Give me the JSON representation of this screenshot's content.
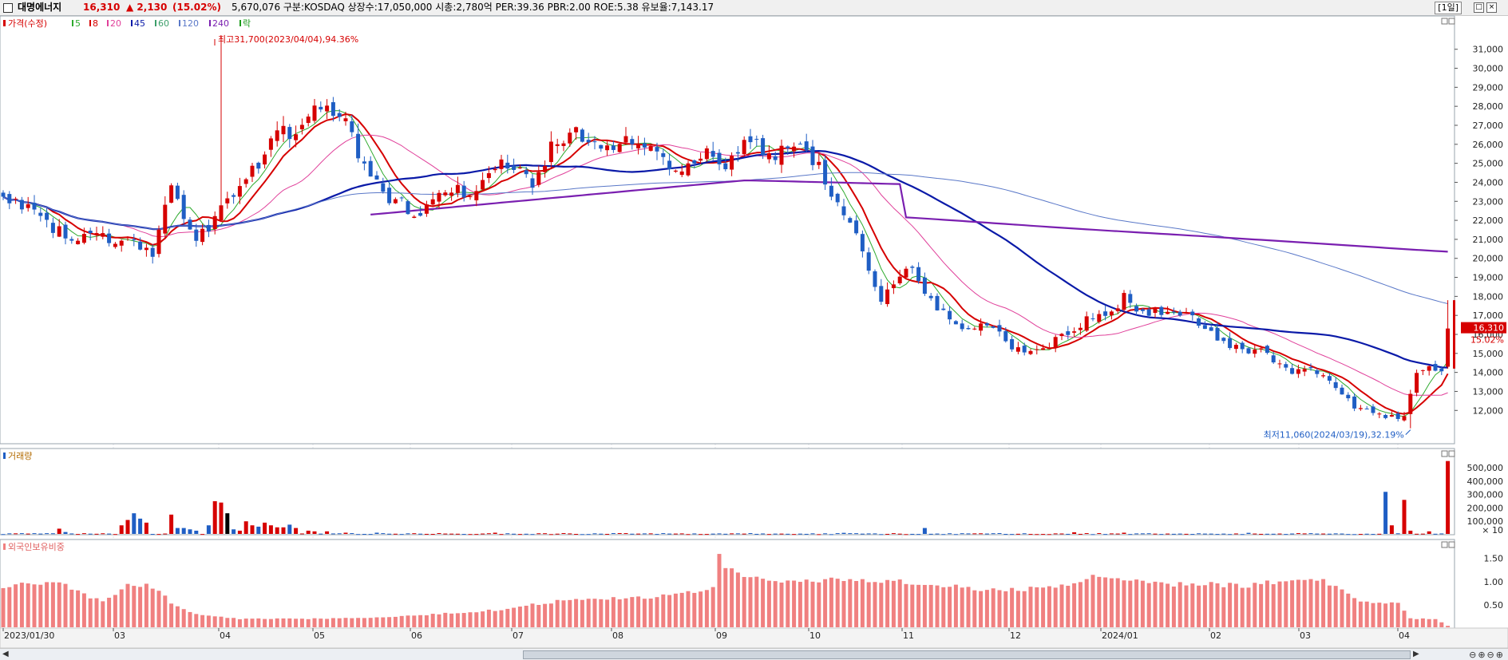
{
  "header": {
    "name": "대명에너지",
    "price": "16,310",
    "change": "▲ 2,130",
    "rate": "(15.02%)",
    "info": "5,670,076  구분:KOSDAQ 상장수:17,050,000 시총:2,780억 PER:39.36 PBR:2.00 ROE:5.38 유보율:7,143.17",
    "period": "[1일]",
    "window_buttons": [
      "□",
      "×"
    ]
  },
  "legend": {
    "price_label": "가격(수정)",
    "ma": [
      {
        "label": "5",
        "color": "#2eaa2e"
      },
      {
        "label": "8",
        "color": "#d60000"
      },
      {
        "label": "20",
        "color": "#e0409a"
      },
      {
        "label": "45",
        "color": "#0a1aa8"
      },
      {
        "label": "60",
        "color": "#3c9f6a"
      },
      {
        "label": "120",
        "color": "#5a78c8"
      },
      {
        "label": "240",
        "color": "#7a1fb0"
      },
      {
        "label": "락",
        "color": "#1a9a1a"
      }
    ]
  },
  "annotations": {
    "high": "최고31,700(2023/04/04),94.36%",
    "low": "최저11,060(2024/03/19),32.19%"
  },
  "volume_panel": {
    "title": "거래량",
    "unit_label": "× 10"
  },
  "foreign_panel": {
    "title": "외국인보유비중"
  },
  "chart_data": [
    {
      "type": "candlestick",
      "title": "가격(수정)",
      "ylim": [
        10500,
        32500
      ],
      "yticks": [
        12000,
        13000,
        14000,
        15000,
        16000,
        17000,
        18000,
        19000,
        20000,
        21000,
        22000,
        23000,
        24000,
        25000,
        26000,
        27000,
        28000,
        29000,
        30000,
        31000
      ],
      "x_dates": [
        "2023/01/30",
        "03",
        "04",
        "05",
        "06",
        "07",
        "08",
        "09",
        "10",
        "11",
        "12",
        "2024/01",
        "02",
        "03",
        "04"
      ],
      "last_price": "16,310",
      "last_rate": "15.02%",
      "anchors": [
        [
          0,
          23500
        ],
        [
          10,
          21200
        ],
        [
          20,
          21000
        ],
        [
          24,
          20200
        ],
        [
          27,
          23800
        ],
        [
          31,
          21000
        ],
        [
          38,
          23500
        ],
        [
          44,
          26500
        ],
        [
          48,
          27000
        ],
        [
          51,
          28200
        ],
        [
          54,
          27600
        ],
        [
          58,
          24800
        ],
        [
          62,
          23200
        ],
        [
          67,
          22400
        ],
        [
          70,
          23800
        ],
        [
          75,
          23400
        ],
        [
          80,
          25000
        ],
        [
          85,
          24000
        ],
        [
          88,
          25800
        ],
        [
          92,
          26800
        ],
        [
          96,
          25800
        ],
        [
          100,
          26200
        ],
        [
          104,
          26000
        ],
        [
          108,
          24200
        ],
        [
          112,
          25500
        ],
        [
          116,
          25000
        ],
        [
          120,
          26200
        ],
        [
          124,
          25400
        ],
        [
          128,
          25900
        ],
        [
          130,
          25200
        ],
        [
          134,
          23000
        ],
        [
          138,
          20300
        ],
        [
          141,
          18000
        ],
        [
          144,
          19000
        ],
        [
          146,
          19700
        ],
        [
          149,
          17800
        ],
        [
          152,
          16900
        ],
        [
          155,
          16400
        ],
        [
          159,
          16300
        ],
        [
          162,
          15100
        ],
        [
          166,
          15300
        ],
        [
          170,
          15800
        ],
        [
          174,
          16800
        ],
        [
          177,
          16800
        ],
        [
          180,
          17900
        ],
        [
          183,
          17300
        ],
        [
          187,
          17200
        ],
        [
          190,
          17300
        ],
        [
          193,
          16300
        ],
        [
          196,
          15400
        ],
        [
          199,
          15100
        ],
        [
          202,
          15300
        ],
        [
          205,
          14400
        ],
        [
          208,
          14000
        ],
        [
          211,
          14100
        ],
        [
          214,
          13400
        ],
        [
          217,
          12300
        ],
        [
          220,
          11900
        ],
        [
          223,
          11600
        ],
        [
          225,
          11800
        ],
        [
          227,
          13800
        ],
        [
          229,
          14300
        ],
        [
          231,
          14200
        ],
        [
          232,
          16310
        ]
      ],
      "ma_periods": [
        5,
        8,
        20,
        45,
        120,
        240
      ]
    },
    {
      "type": "bar",
      "title": "거래량",
      "ylim": [
        0,
        560000
      ],
      "yticks": [
        100000,
        200000,
        300000,
        400000,
        500000
      ],
      "base": 8000,
      "spikes": [
        [
          9,
          45000
        ],
        [
          10,
          20000
        ],
        [
          19,
          70000
        ],
        [
          20,
          110000
        ],
        [
          21,
          160000
        ],
        [
          22,
          120000
        ],
        [
          23,
          90000
        ],
        [
          27,
          150000
        ],
        [
          28,
          50000
        ],
        [
          29,
          50000
        ],
        [
          30,
          40000
        ],
        [
          31,
          30000
        ],
        [
          33,
          70000
        ],
        [
          34,
          250000
        ],
        [
          35,
          240000
        ],
        [
          36,
          160000
        ],
        [
          37,
          40000
        ],
        [
          38,
          30000
        ],
        [
          39,
          100000
        ],
        [
          40,
          70000
        ],
        [
          41,
          60000
        ],
        [
          42,
          90000
        ],
        [
          43,
          70000
        ],
        [
          44,
          55000
        ],
        [
          45,
          55000
        ],
        [
          46,
          75000
        ],
        [
          47,
          50000
        ],
        [
          49,
          30000
        ],
        [
          50,
          25000
        ],
        [
          52,
          25000
        ],
        [
          55,
          15000
        ],
        [
          60,
          15000
        ],
        [
          70,
          12000
        ],
        [
          79,
          15000
        ],
        [
          90,
          12000
        ],
        [
          135,
          14000
        ],
        [
          148,
          50000
        ],
        [
          172,
          18000
        ],
        [
          180,
          15000
        ],
        [
          200,
          14000
        ],
        [
          222,
          320000
        ],
        [
          223,
          70000
        ],
        [
          225,
          260000
        ],
        [
          226,
          30000
        ],
        [
          229,
          25000
        ],
        [
          232,
          550000
        ]
      ]
    },
    {
      "type": "bar",
      "title": "외국인보유비중",
      "ylim": [
        0,
        1.7
      ],
      "yticks": [
        0.5,
        1.0,
        1.5
      ],
      "anchors": [
        [
          0,
          0.9
        ],
        [
          8,
          1.0
        ],
        [
          12,
          0.8
        ],
        [
          16,
          0.55
        ],
        [
          20,
          0.95
        ],
        [
          24,
          0.9
        ],
        [
          27,
          0.55
        ],
        [
          31,
          0.3
        ],
        [
          38,
          0.2
        ],
        [
          50,
          0.2
        ],
        [
          60,
          0.22
        ],
        [
          70,
          0.3
        ],
        [
          80,
          0.4
        ],
        [
          90,
          0.6
        ],
        [
          100,
          0.65
        ],
        [
          108,
          0.7
        ],
        [
          114,
          0.85
        ],
        [
          115,
          1.65
        ],
        [
          116,
          1.3
        ],
        [
          120,
          1.05
        ],
        [
          128,
          1.0
        ],
        [
          134,
          1.05
        ],
        [
          140,
          1.0
        ],
        [
          144,
          1.0
        ],
        [
          150,
          0.95
        ],
        [
          156,
          0.85
        ],
        [
          160,
          0.8
        ],
        [
          170,
          0.9
        ],
        [
          175,
          1.1
        ],
        [
          182,
          1.05
        ],
        [
          188,
          0.95
        ],
        [
          194,
          0.95
        ],
        [
          200,
          0.9
        ],
        [
          206,
          1.05
        ],
        [
          210,
          1.1
        ],
        [
          214,
          0.9
        ],
        [
          218,
          0.6
        ],
        [
          222,
          0.5
        ],
        [
          224,
          0.55
        ],
        [
          226,
          0.2
        ],
        [
          230,
          0.2
        ],
        [
          232,
          0.05
        ]
      ]
    }
  ]
}
